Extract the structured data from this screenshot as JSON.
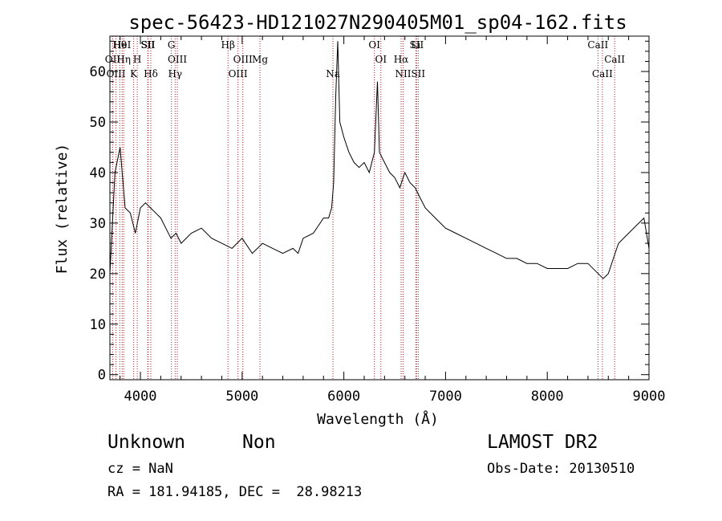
{
  "chart_data": {
    "type": "line",
    "title": "spec-56423-HD121027N290405M01_sp04-162.fits",
    "xlabel": "Wavelength (Å)",
    "ylabel": "Flux (relative)",
    "xlim": [
      3700,
      9000
    ],
    "ylim": [
      -1,
      67
    ],
    "xticks": [
      "4000",
      "5000",
      "6000",
      "7000",
      "8000",
      "9000"
    ],
    "xtick_values": [
      4000,
      5000,
      6000,
      7000,
      8000,
      9000
    ],
    "yticks": [
      "0",
      "10",
      "20",
      "30",
      "40",
      "50",
      "60"
    ],
    "ytick_values": [
      0,
      10,
      20,
      30,
      40,
      50,
      60
    ],
    "grid": false,
    "line_color": "#000000",
    "marker_color": "#a0262c",
    "series": [
      {
        "x": [
          3700,
          3750,
          3800,
          3850,
          3900,
          3950,
          4000,
          4050,
          4100,
          4150,
          4200,
          4250,
          4300,
          4350,
          4400,
          4500,
          4600,
          4700,
          4800,
          4900,
          5000,
          5100,
          5200,
          5300,
          5400,
          5500,
          5550,
          5600,
          5700,
          5800,
          5850,
          5880,
          5900,
          5920,
          5940,
          5960,
          6000,
          6050,
          6100,
          6150,
          6200,
          6250,
          6300,
          6330,
          6350,
          6400,
          6450,
          6500,
          6550,
          6600,
          6650,
          6700,
          6750,
          6800,
          6900,
          7000,
          7100,
          7200,
          7300,
          7400,
          7500,
          7600,
          7700,
          7800,
          7900,
          8000,
          8100,
          8200,
          8300,
          8400,
          8500,
          8550,
          8600,
          8650,
          8700,
          8800,
          8900,
          8950,
          9000
        ],
        "y": [
          20,
          40,
          45,
          33,
          32,
          28,
          33,
          34,
          33,
          32,
          31,
          29,
          27,
          28,
          26,
          28,
          29,
          27,
          26,
          25,
          27,
          24,
          26,
          25,
          24,
          25,
          24,
          27,
          28,
          31,
          31,
          33,
          38,
          55,
          66,
          50,
          47,
          44,
          42,
          41,
          42,
          40,
          44,
          58,
          44,
          42,
          40,
          39,
          37,
          40,
          38,
          37,
          35,
          33,
          31,
          29,
          28,
          27,
          26,
          25,
          24,
          23,
          23,
          22,
          22,
          21,
          21,
          21,
          22,
          22,
          20,
          19,
          20,
          23,
          26,
          28,
          30,
          31,
          25
        ]
      }
    ],
    "lines": [
      {
        "label": "Hθ",
        "x": 3797
      },
      {
        "label": "OII",
        "x": 3727
      },
      {
        "label": "OIII",
        "x": 3760
      },
      {
        "label": "HeI",
        "x": 3820
      },
      {
        "label": "Hη",
        "x": 3835
      },
      {
        "label": "K",
        "x": 3934
      },
      {
        "label": "SII",
        "x": 4072
      },
      {
        "label": "H",
        "x": 3969
      },
      {
        "label": "Hδ",
        "x": 4102
      },
      {
        "label": "SII",
        "x": 4076
      },
      {
        "label": "OIII",
        "x": 4363
      },
      {
        "label": "Hγ",
        "x": 4341
      },
      {
        "label": "G",
        "x": 4305
      },
      {
        "label": "OIII",
        "x": 5007
      },
      {
        "label": "OIII",
        "x": 4959
      },
      {
        "label": "Hβ",
        "x": 4861
      },
      {
        "label": "Mg",
        "x": 5175
      },
      {
        "label": "Na",
        "x": 5893
      },
      {
        "label": "OI",
        "x": 6300
      },
      {
        "label": "OI",
        "x": 6364
      },
      {
        "label": "NII",
        "x": 6583
      },
      {
        "label": "SII",
        "x": 6716
      },
      {
        "label": "Hα",
        "x": 6563
      },
      {
        "label": "SII",
        "x": 6731
      },
      {
        "label": "Li",
        "x": 6707
      },
      {
        "label": "CaII",
        "x": 8662
      },
      {
        "label": "CaII",
        "x": 8542
      },
      {
        "label": "CaII",
        "x": 8498
      }
    ]
  },
  "info": {
    "class": "Unknown",
    "subclass": "Non",
    "survey": "LAMOST DR2",
    "cz": "cz = NaN",
    "obs_date": "Obs-Date: 20130510",
    "coords": "RA = 181.94185, DEC =  28.98213"
  }
}
